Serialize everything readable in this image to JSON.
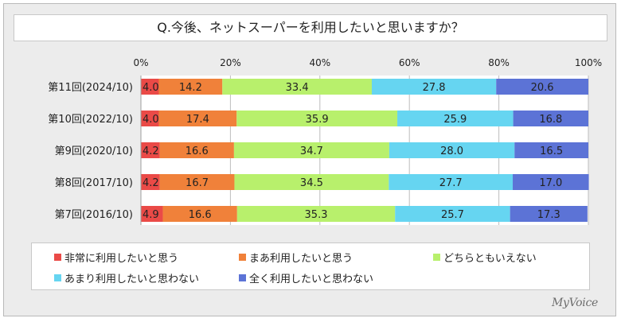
{
  "title": "Q.今後、ネットスーパーを利用したいと思いますか？",
  "brand": "MyVoice",
  "colors": {
    "s1": "#ea4a47",
    "s2": "#f0813a",
    "s3": "#b8f06c",
    "s4": "#66d5f1",
    "s5": "#5c73d6"
  },
  "chart_data": {
    "type": "bar",
    "orientation": "horizontal",
    "stacked": true,
    "percent": true,
    "x_ticks": [
      "0%",
      "20%",
      "40%",
      "60%",
      "80%",
      "100%"
    ],
    "xlim": [
      0,
      100
    ],
    "categories": [
      "第11回(2024/10)",
      "第10回(2022/10)",
      "第9回(2020/10)",
      "第8回(2017/10)",
      "第7回(2016/10)"
    ],
    "series": [
      {
        "name": "非常に利用したいと思う",
        "color_key": "s1",
        "values": [
          "4.0",
          "4.0",
          "4.2",
          "4.2",
          "4.9"
        ]
      },
      {
        "name": "まあ利用したいと思う",
        "color_key": "s2",
        "values": [
          "14.2",
          "17.4",
          "16.6",
          "16.7",
          "16.6"
        ]
      },
      {
        "name": "どちらともいえない",
        "color_key": "s3",
        "values": [
          "33.4",
          "35.9",
          "34.7",
          "34.5",
          "35.3"
        ]
      },
      {
        "name": "あまり利用したいと思わない",
        "color_key": "s4",
        "values": [
          "27.8",
          "25.9",
          "28.0",
          "27.7",
          "25.7"
        ]
      },
      {
        "name": "全く利用したいと思わない",
        "color_key": "s5",
        "values": [
          "20.6",
          "16.8",
          "16.5",
          "17.0",
          "17.3"
        ]
      }
    ],
    "legend_position": "bottom"
  }
}
